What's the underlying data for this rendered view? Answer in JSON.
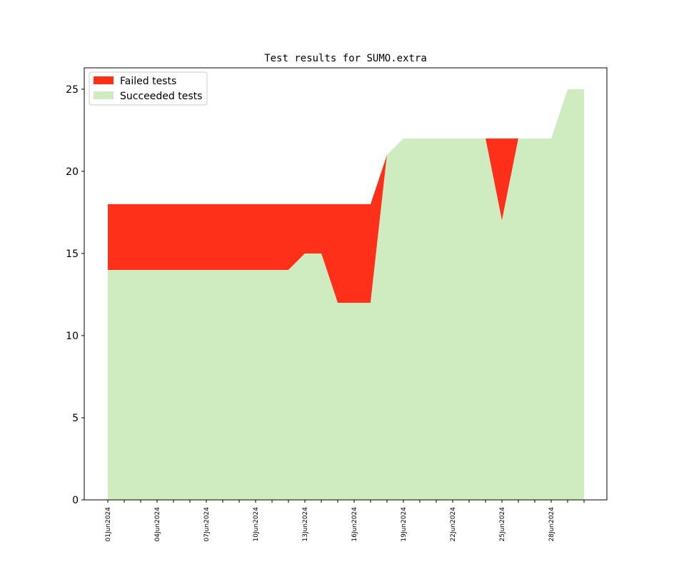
{
  "chart_data": {
    "type": "area",
    "title": "Test results for SUMO.extra",
    "xlabel": "",
    "ylabel": "",
    "stacked": true,
    "x": [
      "01Jun2024",
      "02Jun2024",
      "03Jun2024",
      "04Jun2024",
      "05Jun2024",
      "06Jun2024",
      "07Jun2024",
      "08Jun2024",
      "09Jun2024",
      "10Jun2024",
      "11Jun2024",
      "12Jun2024",
      "13Jun2024",
      "14Jun2024",
      "15Jun2024",
      "16Jun2024",
      "17Jun2024",
      "18Jun2024",
      "19Jun2024",
      "20Jun2024",
      "21Jun2024",
      "22Jun2024",
      "23Jun2024",
      "24Jun2024",
      "25Jun2024",
      "26Jun2024",
      "27Jun2024",
      "28Jun2024",
      "29Jun2024",
      "30Jun2024"
    ],
    "x_tick_labels": [
      "01Jun2024",
      "04Jun2024",
      "07Jun2024",
      "10Jun2024",
      "13Jun2024",
      "16Jun2024",
      "19Jun2024",
      "22Jun2024",
      "25Jun2024",
      "28Jun2024"
    ],
    "series": [
      {
        "name": "Succeeded tests",
        "color": "#cfecc0",
        "values": [
          14,
          14,
          14,
          14,
          14,
          14,
          14,
          14,
          14,
          14,
          14,
          14,
          15,
          15,
          12,
          12,
          12,
          21,
          22,
          22,
          22,
          22,
          22,
          22,
          17,
          22,
          22,
          22,
          25,
          25
        ]
      },
      {
        "name": "Failed tests",
        "color": "#ff301a",
        "values": [
          4,
          4,
          4,
          4,
          4,
          4,
          4,
          4,
          4,
          4,
          4,
          4,
          3,
          3,
          6,
          6,
          6,
          0,
          0,
          0,
          0,
          0,
          0,
          0,
          5,
          0,
          0,
          0,
          0,
          0
        ]
      }
    ],
    "ylim": [
      0,
      26.3
    ],
    "y_ticks": [
      0,
      5,
      10,
      15,
      20,
      25
    ],
    "legend": {
      "placement": "top-left",
      "entries": [
        {
          "label": "Failed tests",
          "color": "#ff301a"
        },
        {
          "label": "Succeeded tests",
          "color": "#cfecc0"
        }
      ]
    },
    "grid": false
  }
}
